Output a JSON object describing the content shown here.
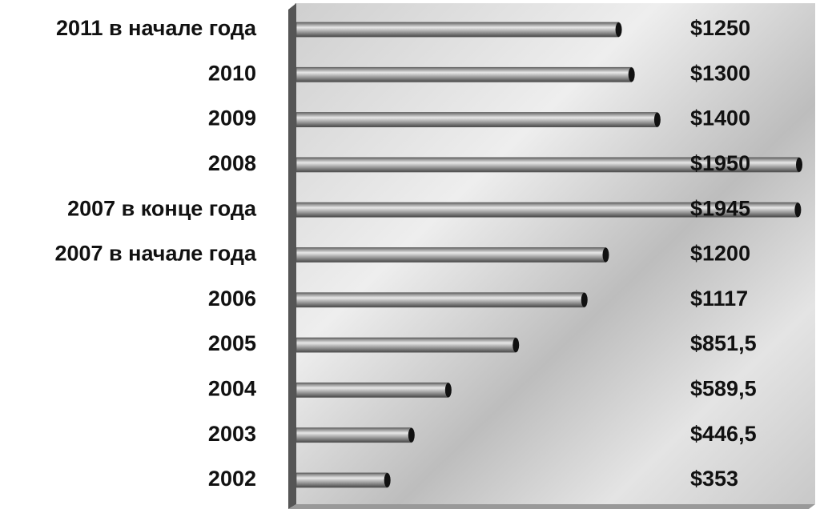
{
  "chart_data": {
    "type": "bar",
    "orientation": "horizontal",
    "categories": [
      "2011 в начале года",
      "2010",
      "2009",
      "2008",
      "2007 в конце года",
      "2007 в начале года",
      "2006",
      "2005",
      "2004",
      "2003",
      "2002"
    ],
    "values": [
      1250,
      1300,
      1400,
      1950,
      1945,
      1200,
      1117,
      851.5,
      589.5,
      446.5,
      353
    ],
    "value_labels": [
      "$1250",
      "$1300",
      "$1400",
      "$1950",
      "$1945",
      "$1200",
      "$1117",
      "$851,5",
      "$589,5",
      "$446,5",
      "$353"
    ],
    "color": "#9a9a9a"
  }
}
